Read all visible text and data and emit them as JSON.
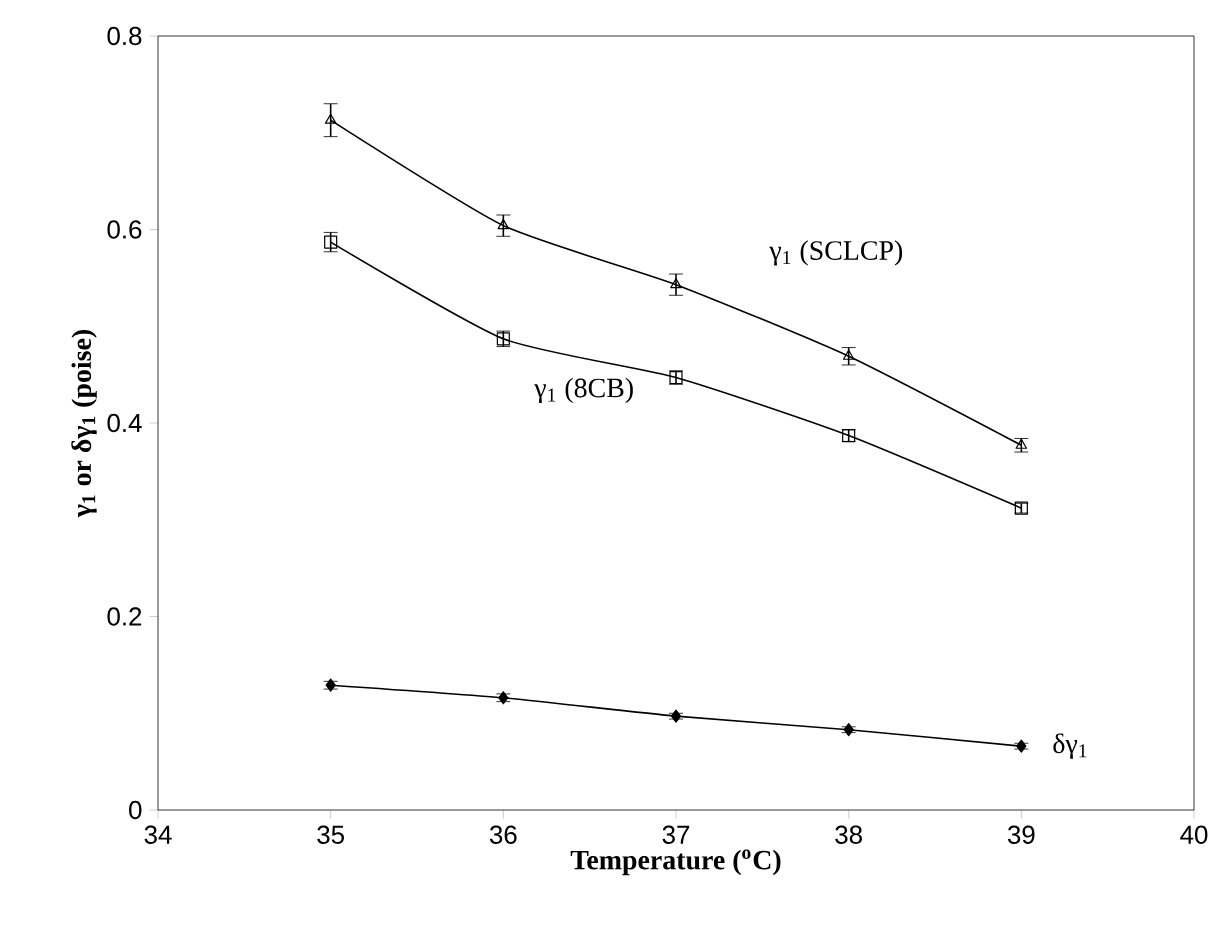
{
  "chart_data": {
    "type": "line",
    "xlabel": "Temperature ($^{o}$C)",
    "ylabel": "γ$_{1}$ or δγ$_{1}$ (poise)",
    "x": [
      35,
      36,
      37,
      38,
      39
    ],
    "series": [
      {
        "name": "γ$_{1}$ (SCLCP)",
        "color": "#000000",
        "marker": "triangle",
        "values": [
          0.713,
          0.604,
          0.543,
          0.469,
          0.377
        ],
        "errors": [
          0.017,
          0.011,
          0.011,
          0.009,
          0.007
        ]
      },
      {
        "name": "γ$_{1}$ (8CB)",
        "color": "#000000",
        "marker": "square",
        "values": [
          0.587,
          0.487,
          0.447,
          0.387,
          0.312
        ],
        "errors": [
          0.01,
          0.008,
          0.007,
          0.006,
          0.005
        ]
      },
      {
        "name": "δγ$_{1}$",
        "color": "#000000",
        "marker": "diamond",
        "values": [
          0.129,
          0.116,
          0.097,
          0.083,
          0.066
        ],
        "errors": [
          0.004,
          0.004,
          0.003,
          0.003,
          0.003
        ]
      }
    ],
    "xlim": [
      34,
      40
    ],
    "xticks": [
      34,
      35,
      36,
      37,
      38,
      39,
      40
    ],
    "ylim": [
      0,
      0.8
    ],
    "yticks": [
      0,
      0.2,
      0.4,
      0.6,
      0.8
    ],
    "grid": false,
    "line_style": "solid"
  }
}
